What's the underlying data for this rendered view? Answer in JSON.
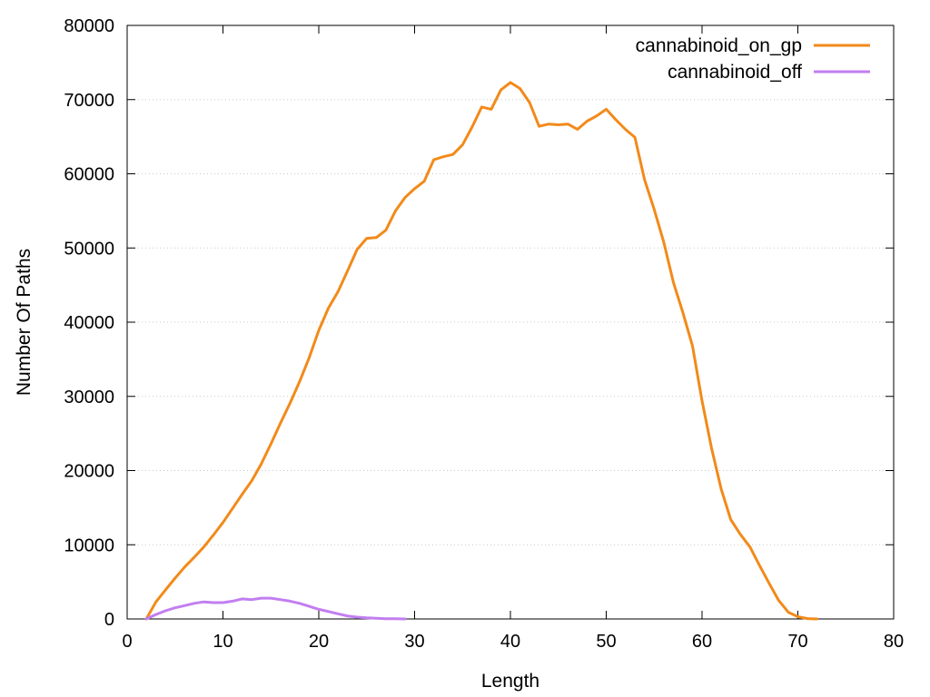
{
  "chart_data": {
    "type": "line",
    "title": "",
    "xlabel": "Length",
    "ylabel": "Number Of Paths",
    "xlim": [
      0,
      80
    ],
    "ylim": [
      0,
      80000
    ],
    "xticks": [
      0,
      10,
      20,
      30,
      40,
      50,
      60,
      70,
      80
    ],
    "yticks": [
      0,
      10000,
      20000,
      30000,
      40000,
      50000,
      60000,
      70000,
      80000
    ],
    "grid": "horizontal-dotted",
    "legend_position": "top-right",
    "series": [
      {
        "name": "cannabinoid_on_gp",
        "color": "#f28a1a",
        "points": [
          [
            2,
            0
          ],
          [
            3,
            2300
          ],
          [
            4,
            3900
          ],
          [
            5,
            5500
          ],
          [
            6,
            7000
          ],
          [
            7,
            8300
          ],
          [
            8,
            9700
          ],
          [
            9,
            11300
          ],
          [
            10,
            13000
          ],
          [
            11,
            14900
          ],
          [
            12,
            16800
          ],
          [
            13,
            18600
          ],
          [
            14,
            20900
          ],
          [
            15,
            23600
          ],
          [
            16,
            26400
          ],
          [
            17,
            29100
          ],
          [
            18,
            32000
          ],
          [
            19,
            35200
          ],
          [
            20,
            38900
          ],
          [
            21,
            41900
          ],
          [
            22,
            44100
          ],
          [
            23,
            46900
          ],
          [
            24,
            49800
          ],
          [
            25,
            51300
          ],
          [
            26,
            51400
          ],
          [
            27,
            52400
          ],
          [
            28,
            55000
          ],
          [
            29,
            56800
          ],
          [
            30,
            58000
          ],
          [
            31,
            59000
          ],
          [
            32,
            61900
          ],
          [
            33,
            62300
          ],
          [
            34,
            62600
          ],
          [
            35,
            63900
          ],
          [
            36,
            66300
          ],
          [
            37,
            69000
          ],
          [
            38,
            68700
          ],
          [
            39,
            71300
          ],
          [
            40,
            72300
          ],
          [
            41,
            71500
          ],
          [
            42,
            69600
          ],
          [
            43,
            66400
          ],
          [
            44,
            66700
          ],
          [
            45,
            66600
          ],
          [
            46,
            66700
          ],
          [
            47,
            66000
          ],
          [
            48,
            67100
          ],
          [
            49,
            67800
          ],
          [
            50,
            68700
          ],
          [
            51,
            67300
          ],
          [
            52,
            66000
          ],
          [
            53,
            64900
          ],
          [
            54,
            59200
          ],
          [
            55,
            55200
          ],
          [
            56,
            50800
          ],
          [
            57,
            45400
          ],
          [
            58,
            41300
          ],
          [
            59,
            36800
          ],
          [
            60,
            29400
          ],
          [
            61,
            23000
          ],
          [
            62,
            17500
          ],
          [
            63,
            13400
          ],
          [
            64,
            11400
          ],
          [
            65,
            9700
          ],
          [
            66,
            7200
          ],
          [
            67,
            4800
          ],
          [
            68,
            2500
          ],
          [
            69,
            900
          ],
          [
            70,
            300
          ],
          [
            71,
            50
          ],
          [
            72,
            0
          ]
        ]
      },
      {
        "name": "cannabinoid_off",
        "color": "#c27ef0",
        "points": [
          [
            2,
            0
          ],
          [
            3,
            600
          ],
          [
            4,
            1100
          ],
          [
            5,
            1500
          ],
          [
            6,
            1800
          ],
          [
            7,
            2100
          ],
          [
            8,
            2300
          ],
          [
            9,
            2200
          ],
          [
            10,
            2200
          ],
          [
            11,
            2400
          ],
          [
            12,
            2700
          ],
          [
            13,
            2600
          ],
          [
            14,
            2800
          ],
          [
            15,
            2800
          ],
          [
            16,
            2600
          ],
          [
            17,
            2400
          ],
          [
            18,
            2100
          ],
          [
            19,
            1700
          ],
          [
            20,
            1300
          ],
          [
            21,
            1000
          ],
          [
            22,
            700
          ],
          [
            23,
            400
          ],
          [
            24,
            250
          ],
          [
            25,
            150
          ],
          [
            26,
            80
          ],
          [
            27,
            40
          ],
          [
            28,
            20
          ],
          [
            29,
            0
          ]
        ]
      }
    ]
  }
}
